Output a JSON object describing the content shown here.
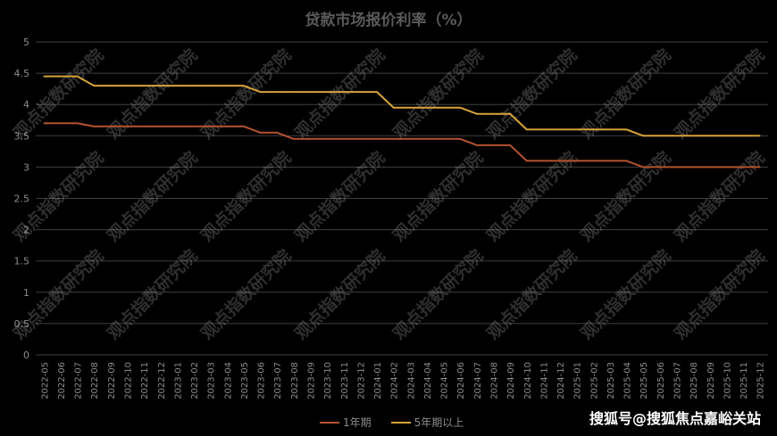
{
  "chart_data": {
    "type": "line",
    "title": "贷款市场报价利率（%）",
    "categories": [
      "2022-05",
      "2022-06",
      "2022-07",
      "2022-08",
      "2022-09",
      "2022-10",
      "2022-11",
      "2022-12",
      "2023-01",
      "2023-02",
      "2023-03",
      "2023-04",
      "2023-05",
      "2023-06",
      "2023-07",
      "2023-08",
      "2023-09",
      "2023-10",
      "2023-11",
      "2023-12",
      "2024-01",
      "2024-02",
      "2024-03",
      "2024-04",
      "2024-05",
      "2024-06",
      "2024-07",
      "2024-08",
      "2024-09",
      "2024-10",
      "2024-11",
      "2024-12",
      "2025-01",
      "2025-02",
      "2025-03",
      "2025-04",
      "2025-05",
      "2025-06",
      "2025-07",
      "2025-08",
      "2025-09",
      "2025-10",
      "2025-11",
      "2025-12"
    ],
    "ylim": [
      0,
      5
    ],
    "yticks": [
      "0",
      "0.5",
      "1",
      "1.5",
      "2",
      "2.5",
      "3",
      "3.5",
      "4",
      "4.5",
      "5"
    ],
    "grid": true,
    "legend_position": "bottom",
    "series": [
      {
        "name": "1年期",
        "color": "#b5532f",
        "values": [
          3.7,
          3.7,
          3.7,
          3.65,
          3.65,
          3.65,
          3.65,
          3.65,
          3.65,
          3.65,
          3.65,
          3.65,
          3.65,
          3.55,
          3.55,
          3.45,
          3.45,
          3.45,
          3.45,
          3.45,
          3.45,
          3.45,
          3.45,
          3.45,
          3.45,
          3.45,
          3.35,
          3.35,
          3.35,
          3.1,
          3.1,
          3.1,
          3.1,
          3.1,
          3.1,
          3.1,
          3.0,
          3.0,
          3.0,
          3.0,
          3.0,
          3.0,
          3.0,
          3.0
        ]
      },
      {
        "name": "5年期以上",
        "color": "#d9a33a",
        "values": [
          4.45,
          4.45,
          4.45,
          4.3,
          4.3,
          4.3,
          4.3,
          4.3,
          4.3,
          4.3,
          4.3,
          4.3,
          4.3,
          4.2,
          4.2,
          4.2,
          4.2,
          4.2,
          4.2,
          4.2,
          4.2,
          3.95,
          3.95,
          3.95,
          3.95,
          3.95,
          3.85,
          3.85,
          3.85,
          3.6,
          3.6,
          3.6,
          3.6,
          3.6,
          3.6,
          3.6,
          3.5,
          3.5,
          3.5,
          3.5,
          3.5,
          3.5,
          3.5,
          3.5
        ]
      }
    ]
  },
  "watermark": "观点指数研究院",
  "credit": "搜狐号@搜狐焦点嘉峪关站"
}
